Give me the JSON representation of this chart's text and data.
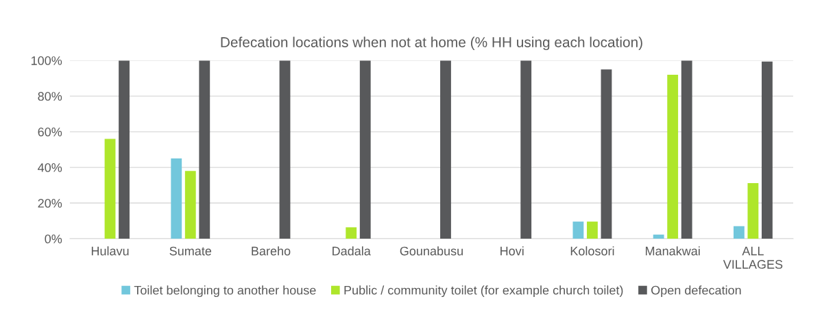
{
  "chart_data": {
    "type": "bar",
    "title": "Defecation locations when not at home (% HH using each location)",
    "categories": [
      "Hulavu",
      "Sumate",
      "Bareho",
      "Dadala",
      "Gounabusu",
      "Hovi",
      "Kolosori",
      "Manakwai",
      "ALL\nVILLAGES"
    ],
    "series": [
      {
        "name": "Toilet belonging to another house",
        "color": "#72c7dc",
        "values": [
          0,
          45,
          0,
          0,
          0,
          0,
          9.6,
          2.3,
          7
        ]
      },
      {
        "name": "Public / community toilet (for example church toilet)",
        "color": "#aee62b",
        "values": [
          56,
          38,
          0,
          6.4,
          0,
          0,
          9.6,
          92,
          31.2
        ]
      },
      {
        "name": "Open defecation",
        "color": "#58595b",
        "values": [
          100,
          100,
          100,
          100,
          100,
          100,
          95,
          100,
          99.4
        ]
      }
    ],
    "ylim": [
      0,
      100
    ],
    "yticks": [
      {
        "value": 0,
        "label": "0%"
      },
      {
        "value": 20,
        "label": "20%"
      },
      {
        "value": 40,
        "label": "40%"
      },
      {
        "value": 60,
        "label": "60%"
      },
      {
        "value": 80,
        "label": "80%"
      },
      {
        "value": 100,
        "label": "100%"
      }
    ],
    "grid": "y",
    "legend": "bottom"
  }
}
